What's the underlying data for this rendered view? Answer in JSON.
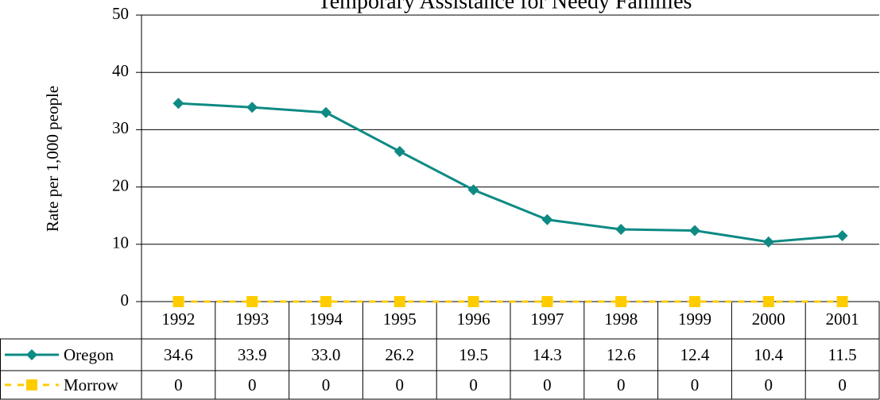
{
  "chart_data": {
    "type": "line",
    "title": "Temporary Assistance for Needy Families",
    "y_label": "Rate per 1,000 people",
    "categories": [
      "1992",
      "1993",
      "1994",
      "1995",
      "1996",
      "1997",
      "1998",
      "1999",
      "2000",
      "2001"
    ],
    "series": [
      {
        "name": "Oregon",
        "color": "#0e8a84",
        "marker": "diamond",
        "values": [
          34.6,
          33.9,
          33.0,
          26.2,
          19.5,
          14.3,
          12.6,
          12.4,
          10.4,
          11.5
        ],
        "value_labels": [
          "34.6",
          "33.9",
          "33.0",
          "26.2",
          "19.5",
          "14.3",
          "12.6",
          "12.4",
          "10.4",
          "11.5"
        ]
      },
      {
        "name": "Morrow",
        "color": "#ffcc00",
        "marker": "square",
        "dashed": true,
        "values": [
          0,
          0,
          0,
          0,
          0,
          0,
          0,
          0,
          0,
          0
        ]
      }
    ],
    "ylim": [
      0,
      50
    ],
    "yticks": [
      0,
      10,
      20,
      30,
      40,
      50
    ],
    "grid": true
  }
}
